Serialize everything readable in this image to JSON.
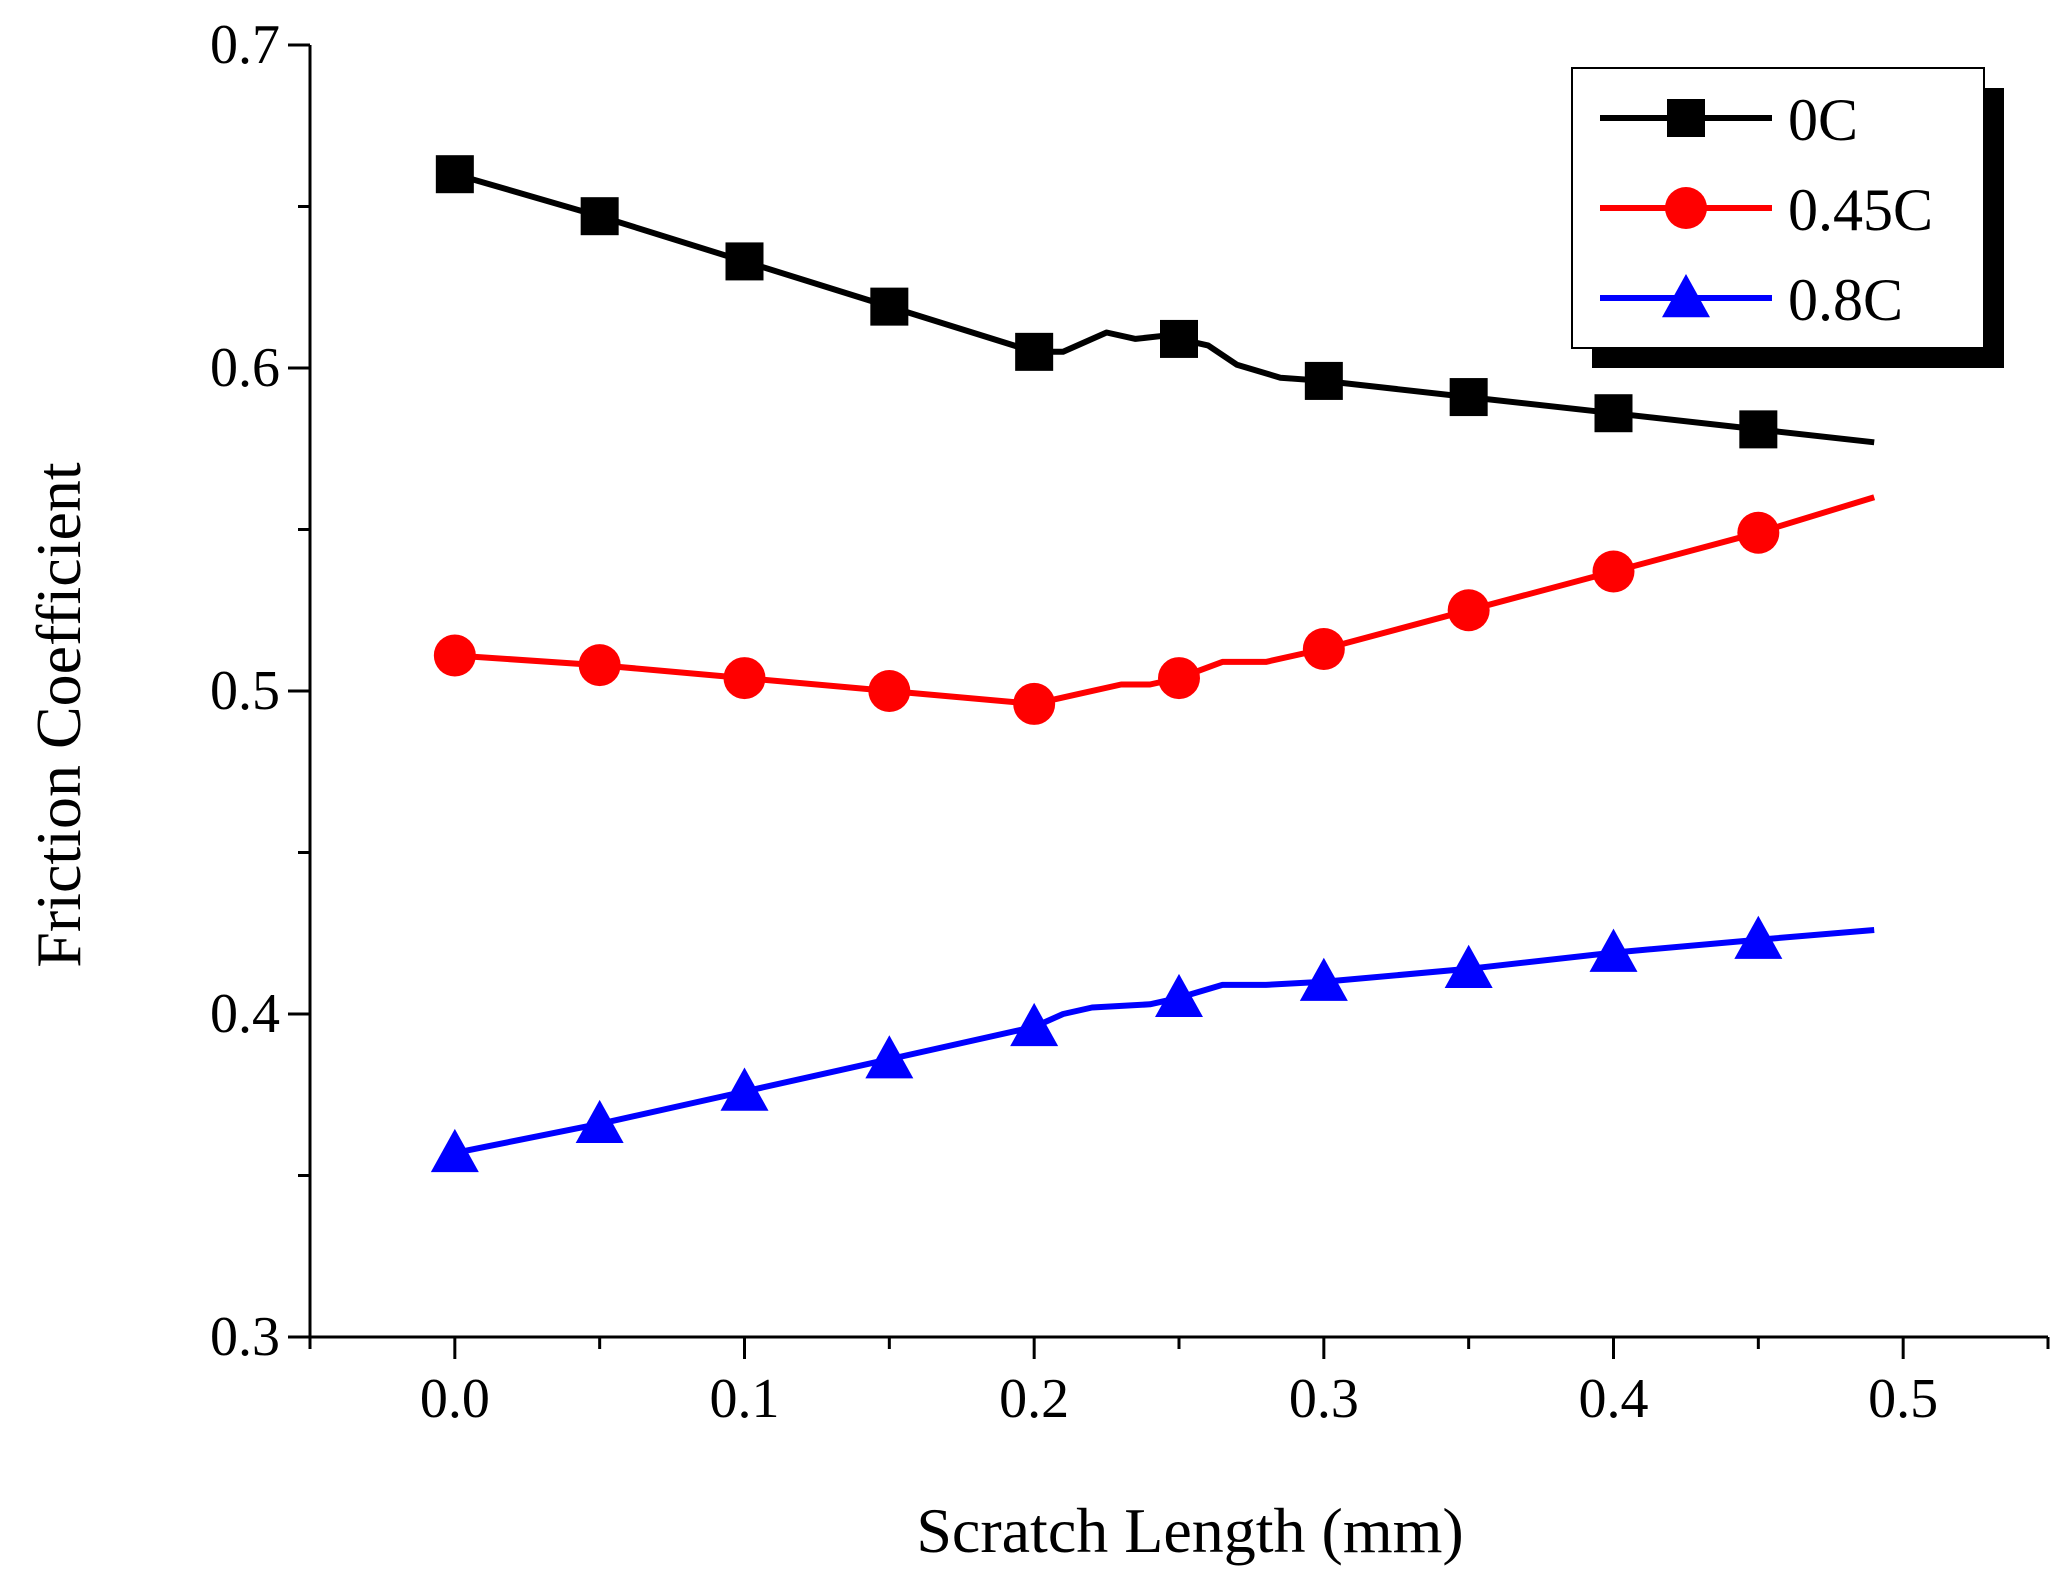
{
  "chart_data": {
    "type": "line",
    "title": "",
    "xlabel": "Scratch Length (mm)",
    "ylabel": "Friction Coefficient",
    "xlim": [
      -0.05,
      0.55
    ],
    "ylim": [
      0.3,
      0.7
    ],
    "x_ticks": [
      0.0,
      0.1,
      0.2,
      0.3,
      0.4,
      0.5
    ],
    "x_tick_labels": [
      "0.0",
      "0.1",
      "0.2",
      "0.3",
      "0.4",
      "0.5"
    ],
    "y_ticks": [
      0.3,
      0.4,
      0.5,
      0.6,
      0.7
    ],
    "y_tick_labels": [
      "0.3",
      "0.4",
      "0.5",
      "0.6",
      "0.7"
    ],
    "grid": false,
    "legend_position": "top-right",
    "series": [
      {
        "name": "0C",
        "color": "#000000",
        "marker": "square",
        "x": [
          0.0,
          0.05,
          0.1,
          0.15,
          0.2,
          0.25,
          0.3,
          0.35,
          0.4,
          0.45
        ],
        "values": [
          0.66,
          0.647,
          0.633,
          0.619,
          0.605,
          0.609,
          0.596,
          0.591,
          0.586,
          0.581
        ],
        "line": [
          [
            0.0,
            0.66
          ],
          [
            0.05,
            0.647
          ],
          [
            0.1,
            0.633
          ],
          [
            0.15,
            0.619
          ],
          [
            0.2,
            0.605
          ],
          [
            0.21,
            0.605
          ],
          [
            0.225,
            0.611
          ],
          [
            0.235,
            0.609
          ],
          [
            0.245,
            0.61
          ],
          [
            0.25,
            0.609
          ],
          [
            0.26,
            0.607
          ],
          [
            0.27,
            0.601
          ],
          [
            0.285,
            0.597
          ],
          [
            0.3,
            0.596
          ],
          [
            0.35,
            0.591
          ],
          [
            0.4,
            0.586
          ],
          [
            0.45,
            0.581
          ],
          [
            0.49,
            0.577
          ]
        ]
      },
      {
        "name": "0.45C",
        "color": "#ff0000",
        "marker": "circle",
        "x": [
          0.0,
          0.05,
          0.1,
          0.15,
          0.2,
          0.25,
          0.3,
          0.35,
          0.4,
          0.45
        ],
        "values": [
          0.511,
          0.508,
          0.504,
          0.5,
          0.496,
          0.504,
          0.513,
          0.525,
          0.537,
          0.549
        ],
        "line": [
          [
            0.0,
            0.511
          ],
          [
            0.05,
            0.508
          ],
          [
            0.1,
            0.504
          ],
          [
            0.15,
            0.5
          ],
          [
            0.2,
            0.496
          ],
          [
            0.215,
            0.499
          ],
          [
            0.23,
            0.502
          ],
          [
            0.24,
            0.502
          ],
          [
            0.25,
            0.504
          ],
          [
            0.265,
            0.509
          ],
          [
            0.28,
            0.509
          ],
          [
            0.3,
            0.513
          ],
          [
            0.35,
            0.525
          ],
          [
            0.4,
            0.537
          ],
          [
            0.45,
            0.549
          ],
          [
            0.49,
            0.56
          ]
        ]
      },
      {
        "name": "0.8C",
        "color": "#0000ff",
        "marker": "triangle",
        "x": [
          0.0,
          0.05,
          0.1,
          0.15,
          0.2,
          0.25,
          0.3,
          0.35,
          0.4,
          0.45
        ],
        "values": [
          0.357,
          0.366,
          0.376,
          0.386,
          0.396,
          0.405,
          0.41,
          0.414,
          0.419,
          0.423
        ],
        "line": [
          [
            0.0,
            0.357
          ],
          [
            0.05,
            0.366
          ],
          [
            0.1,
            0.376
          ],
          [
            0.15,
            0.386
          ],
          [
            0.2,
            0.396
          ],
          [
            0.21,
            0.4
          ],
          [
            0.22,
            0.402
          ],
          [
            0.24,
            0.403
          ],
          [
            0.25,
            0.405
          ],
          [
            0.265,
            0.409
          ],
          [
            0.28,
            0.409
          ],
          [
            0.3,
            0.41
          ],
          [
            0.35,
            0.414
          ],
          [
            0.4,
            0.419
          ],
          [
            0.45,
            0.423
          ],
          [
            0.49,
            0.426
          ]
        ]
      }
    ]
  }
}
